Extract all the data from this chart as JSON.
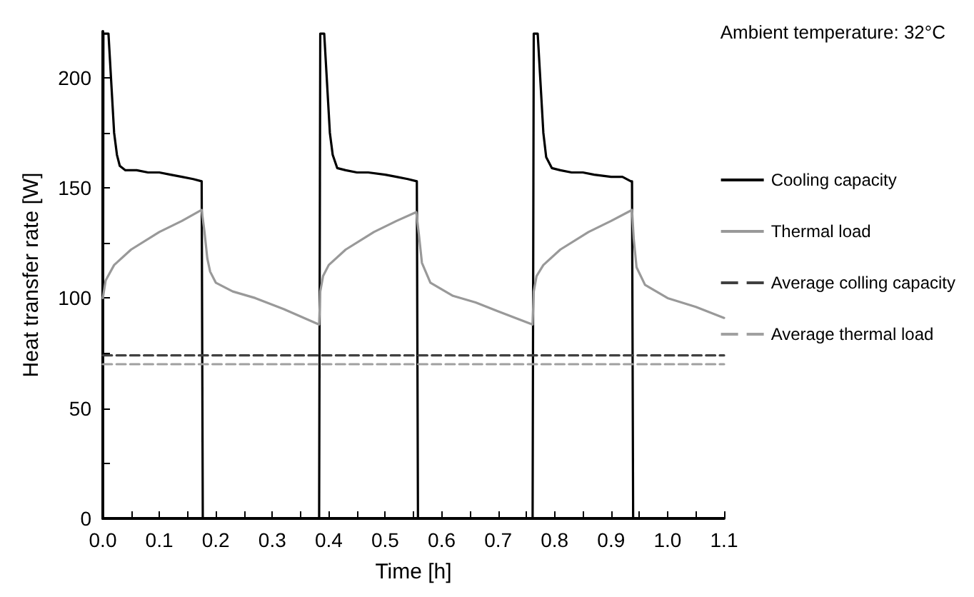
{
  "chart_data": {
    "type": "line",
    "xlabel": "Time [h]",
    "ylabel": "Heat transfer rate [W]",
    "annotations": [
      "Ambient temperature: 32°C"
    ],
    "xlim": [
      0,
      1.1
    ],
    "ylim": [
      0,
      221
    ],
    "xticks": [
      {
        "value": 0,
        "label": "0.0"
      },
      {
        "value": 0.05,
        "label": null
      },
      0.1,
      {
        "value": 0.15,
        "label": null
      },
      0.2,
      {
        "value": 0.25,
        "label": null
      },
      0.3,
      {
        "value": 0.35,
        "label": null
      },
      0.4,
      {
        "value": 0.45,
        "label": null
      },
      0.5,
      {
        "value": 0.55,
        "label": null
      },
      0.6,
      {
        "value": 0.65,
        "label": null
      },
      0.7,
      {
        "value": 0.75,
        "label": null
      },
      0.8,
      {
        "value": 0.85,
        "label": null
      },
      0.9,
      {
        "value": 0.95,
        "label": null
      },
      {
        "value": 1,
        "label": "1.0"
      },
      {
        "value": 1.05,
        "label": null
      },
      1.1
    ],
    "yticks": [
      0,
      {
        "value": 25,
        "label": null
      },
      50,
      {
        "value": 75,
        "label": null
      },
      100,
      {
        "value": 125,
        "label": null
      },
      150,
      {
        "value": 175,
        "label": null
      },
      200
    ],
    "grid": false,
    "legend": "right",
    "marker": "none",
    "line_style": "solid",
    "series": [
      {
        "name": "Cooling capacity",
        "color": "#000000",
        "x": [
          0,
          0.001,
          0.01,
          0.02,
          0.025,
          0.03,
          0.04,
          0.06,
          0.08,
          0.1,
          0.12,
          0.14,
          0.16,
          0.175,
          0.177,
          0.383,
          0.385,
          0.392,
          0.402,
          0.407,
          0.415,
          0.43,
          0.45,
          0.47,
          0.5,
          0.52,
          0.54,
          0.556,
          0.558,
          0.761,
          0.763,
          0.77,
          0.78,
          0.785,
          0.795,
          0.81,
          0.83,
          0.85,
          0.87,
          0.9,
          0.92,
          0.935,
          0.937,
          0.939
        ],
        "values": [
          0,
          220,
          220,
          175,
          165,
          160,
          158,
          158,
          157,
          157,
          156,
          155,
          154,
          153,
          0,
          0,
          220,
          220,
          175,
          165,
          159,
          158,
          157,
          157,
          156,
          155,
          154,
          153,
          0,
          0,
          220,
          220,
          175,
          164,
          159,
          158,
          157,
          157,
          156,
          155,
          155,
          153,
          153,
          0
        ]
      },
      {
        "name": "Thermal load",
        "color": "#999999",
        "x": [
          0,
          0.005,
          0.02,
          0.05,
          0.1,
          0.14,
          0.175,
          0.18,
          0.185,
          0.19,
          0.2,
          0.23,
          0.27,
          0.32,
          0.383,
          0.385,
          0.39,
          0.4,
          0.43,
          0.48,
          0.52,
          0.555,
          0.56,
          0.565,
          0.58,
          0.62,
          0.66,
          0.7,
          0.761,
          0.763,
          0.768,
          0.78,
          0.81,
          0.86,
          0.9,
          0.937,
          0.94,
          0.945,
          0.96,
          1,
          1.05,
          1.1
        ],
        "values": [
          100,
          108,
          115,
          122,
          130,
          135,
          140,
          130,
          118,
          112,
          107,
          103,
          100,
          95,
          88,
          103,
          110,
          115,
          122,
          130,
          135,
          139,
          128,
          116,
          107,
          101,
          98,
          94,
          88,
          103,
          110,
          115,
          122,
          130,
          135,
          140,
          127,
          114,
          106,
          100,
          96,
          91
        ]
      },
      {
        "name": "Average colling capacity",
        "color": "#404040",
        "line_style": "dashed",
        "x": [
          0,
          1.1
        ],
        "values": [
          74,
          74
        ]
      },
      {
        "name": "Average thermal load",
        "color": "#a0a0a0",
        "line_style": "dashed",
        "x": [
          0,
          1.1
        ],
        "values": [
          70,
          70
        ]
      }
    ]
  }
}
